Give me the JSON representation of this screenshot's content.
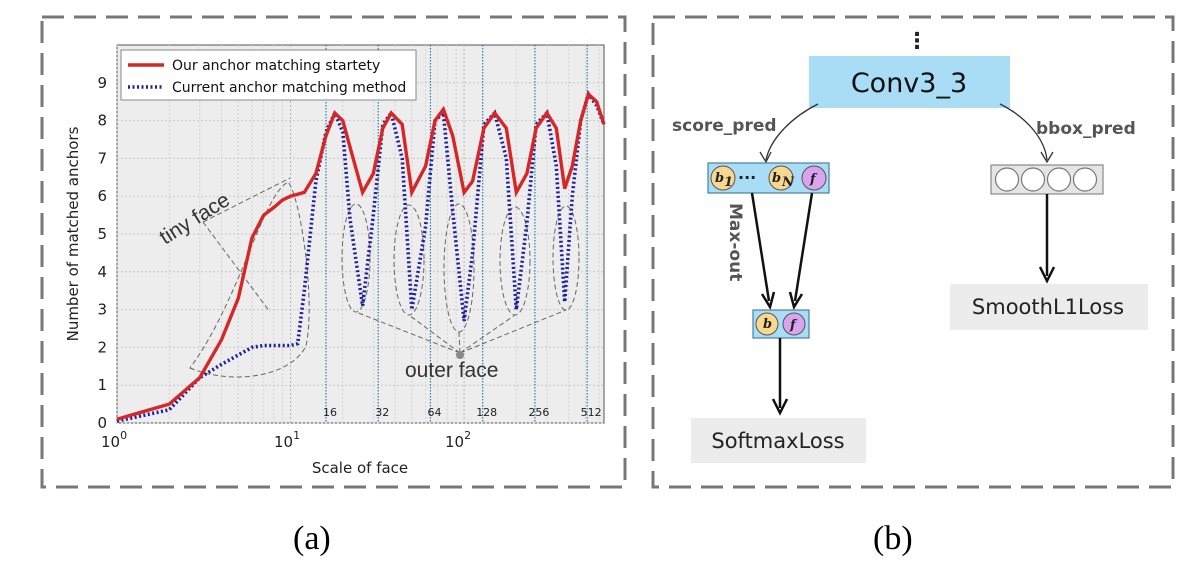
{
  "captions": {
    "left": "(a)",
    "right": "(b)"
  },
  "chart_data": {
    "type": "line",
    "title": "",
    "xlabel": "Scale of face",
    "ylabel": "Number of matched anchors",
    "xscale": "log",
    "xlim": [
      1,
      640
    ],
    "ylim": [
      0,
      10
    ],
    "x_tick_labels": [
      "10^0",
      "10^1",
      "10^2"
    ],
    "y_ticks": [
      0,
      1,
      2,
      3,
      4,
      5,
      6,
      7,
      8,
      9
    ],
    "grid": true,
    "legend_position": "top-left",
    "colors": {
      "ours": "#d62728",
      "current": "#1f1f9e"
    },
    "anchor_scales": [
      "16",
      "32",
      "64",
      "128",
      "256",
      "512"
    ],
    "series": [
      {
        "name": "Our anchor matching startety",
        "style": "solid",
        "x": [
          1,
          2,
          3,
          4,
          5,
          6,
          7,
          8,
          9,
          10,
          12,
          14,
          16,
          18,
          20,
          22,
          26,
          30,
          34,
          38,
          44,
          50,
          60,
          68,
          76,
          86,
          100,
          112,
          130,
          150,
          175,
          200,
          230,
          260,
          300,
          340,
          380,
          420,
          470,
          520,
          580,
          640
        ],
        "values": [
          0.1,
          0.5,
          1.2,
          2.2,
          3.3,
          4.9,
          5.5,
          5.7,
          5.9,
          6.0,
          6.1,
          6.6,
          7.6,
          8.2,
          8.0,
          7.3,
          6.1,
          6.6,
          7.8,
          8.2,
          7.9,
          6.1,
          6.8,
          8.0,
          8.3,
          7.6,
          6.1,
          6.4,
          7.8,
          8.2,
          7.8,
          6.1,
          6.6,
          7.8,
          8.2,
          7.8,
          6.2,
          6.8,
          8.0,
          8.7,
          8.5,
          7.9
        ]
      },
      {
        "name": "Current anchor matching method",
        "style": "dotted",
        "x": [
          1,
          2,
          3,
          4,
          5,
          6,
          7,
          8,
          9,
          10,
          11,
          12,
          14,
          16,
          18,
          20,
          22,
          26,
          30,
          34,
          38,
          44,
          50,
          60,
          68,
          76,
          86,
          100,
          112,
          130,
          150,
          175,
          200,
          230,
          260,
          300,
          340,
          380,
          420,
          470,
          520,
          580,
          640
        ],
        "values": [
          0.05,
          0.35,
          1.2,
          1.55,
          1.8,
          2.0,
          2.05,
          2.05,
          2.05,
          2.05,
          2.1,
          3.5,
          6.4,
          7.7,
          8.2,
          7.7,
          5.4,
          3.1,
          5.5,
          7.9,
          8.2,
          7.0,
          3.0,
          5.2,
          8.0,
          8.2,
          5.6,
          2.7,
          4.5,
          7.9,
          8.2,
          7.0,
          3.0,
          5.3,
          7.9,
          8.2,
          6.8,
          3.2,
          6.0,
          8.0,
          8.7,
          8.4,
          7.9
        ]
      }
    ],
    "annotations": [
      "tiny face",
      "outer face"
    ]
  },
  "diagram": {
    "dots": "⋮",
    "conv": "Conv3_3",
    "score_pred": "score_pred",
    "bbox_pred": "bbox_pred",
    "max_out": "Max-out",
    "softmax_loss": "SoftmaxLoss",
    "smooth_l1_loss": "SmoothL1Loss",
    "symbols": {
      "b1": "b",
      "b1_sub": "1",
      "bN": "b",
      "bN_sub": "N",
      "f": "f",
      "ellipsis": "···"
    },
    "colors": {
      "conv_fill": "#a9dcf5",
      "b_circle": "#f9d78e",
      "f_circle": "#d9a3ee",
      "loss_fill": "#ececec"
    }
  }
}
